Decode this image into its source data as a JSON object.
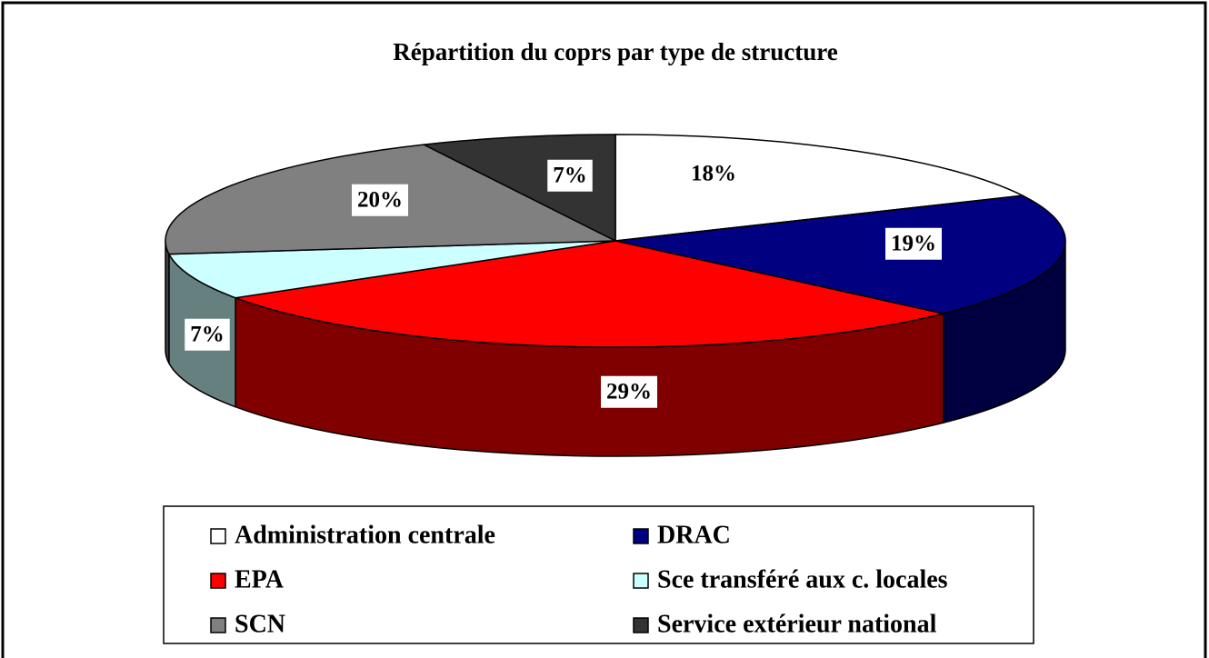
{
  "chart_data": {
    "type": "pie",
    "title": "Répartition du coprs par type de structure",
    "categories": [
      "Administration centrale",
      "DRAC",
      "EPA",
      "Sce transféré aux c. locales",
      "SCN",
      "Service extérieur national"
    ],
    "values": [
      18,
      19,
      29,
      7,
      20,
      7
    ],
    "value_labels": [
      "18%",
      "19%",
      "29%",
      "7%",
      "20%",
      "7%"
    ],
    "colors": [
      "#ffffff",
      "#000080",
      "#ff0000",
      "#ccffff",
      "#808080",
      "#333333"
    ],
    "legend": "bottom"
  }
}
